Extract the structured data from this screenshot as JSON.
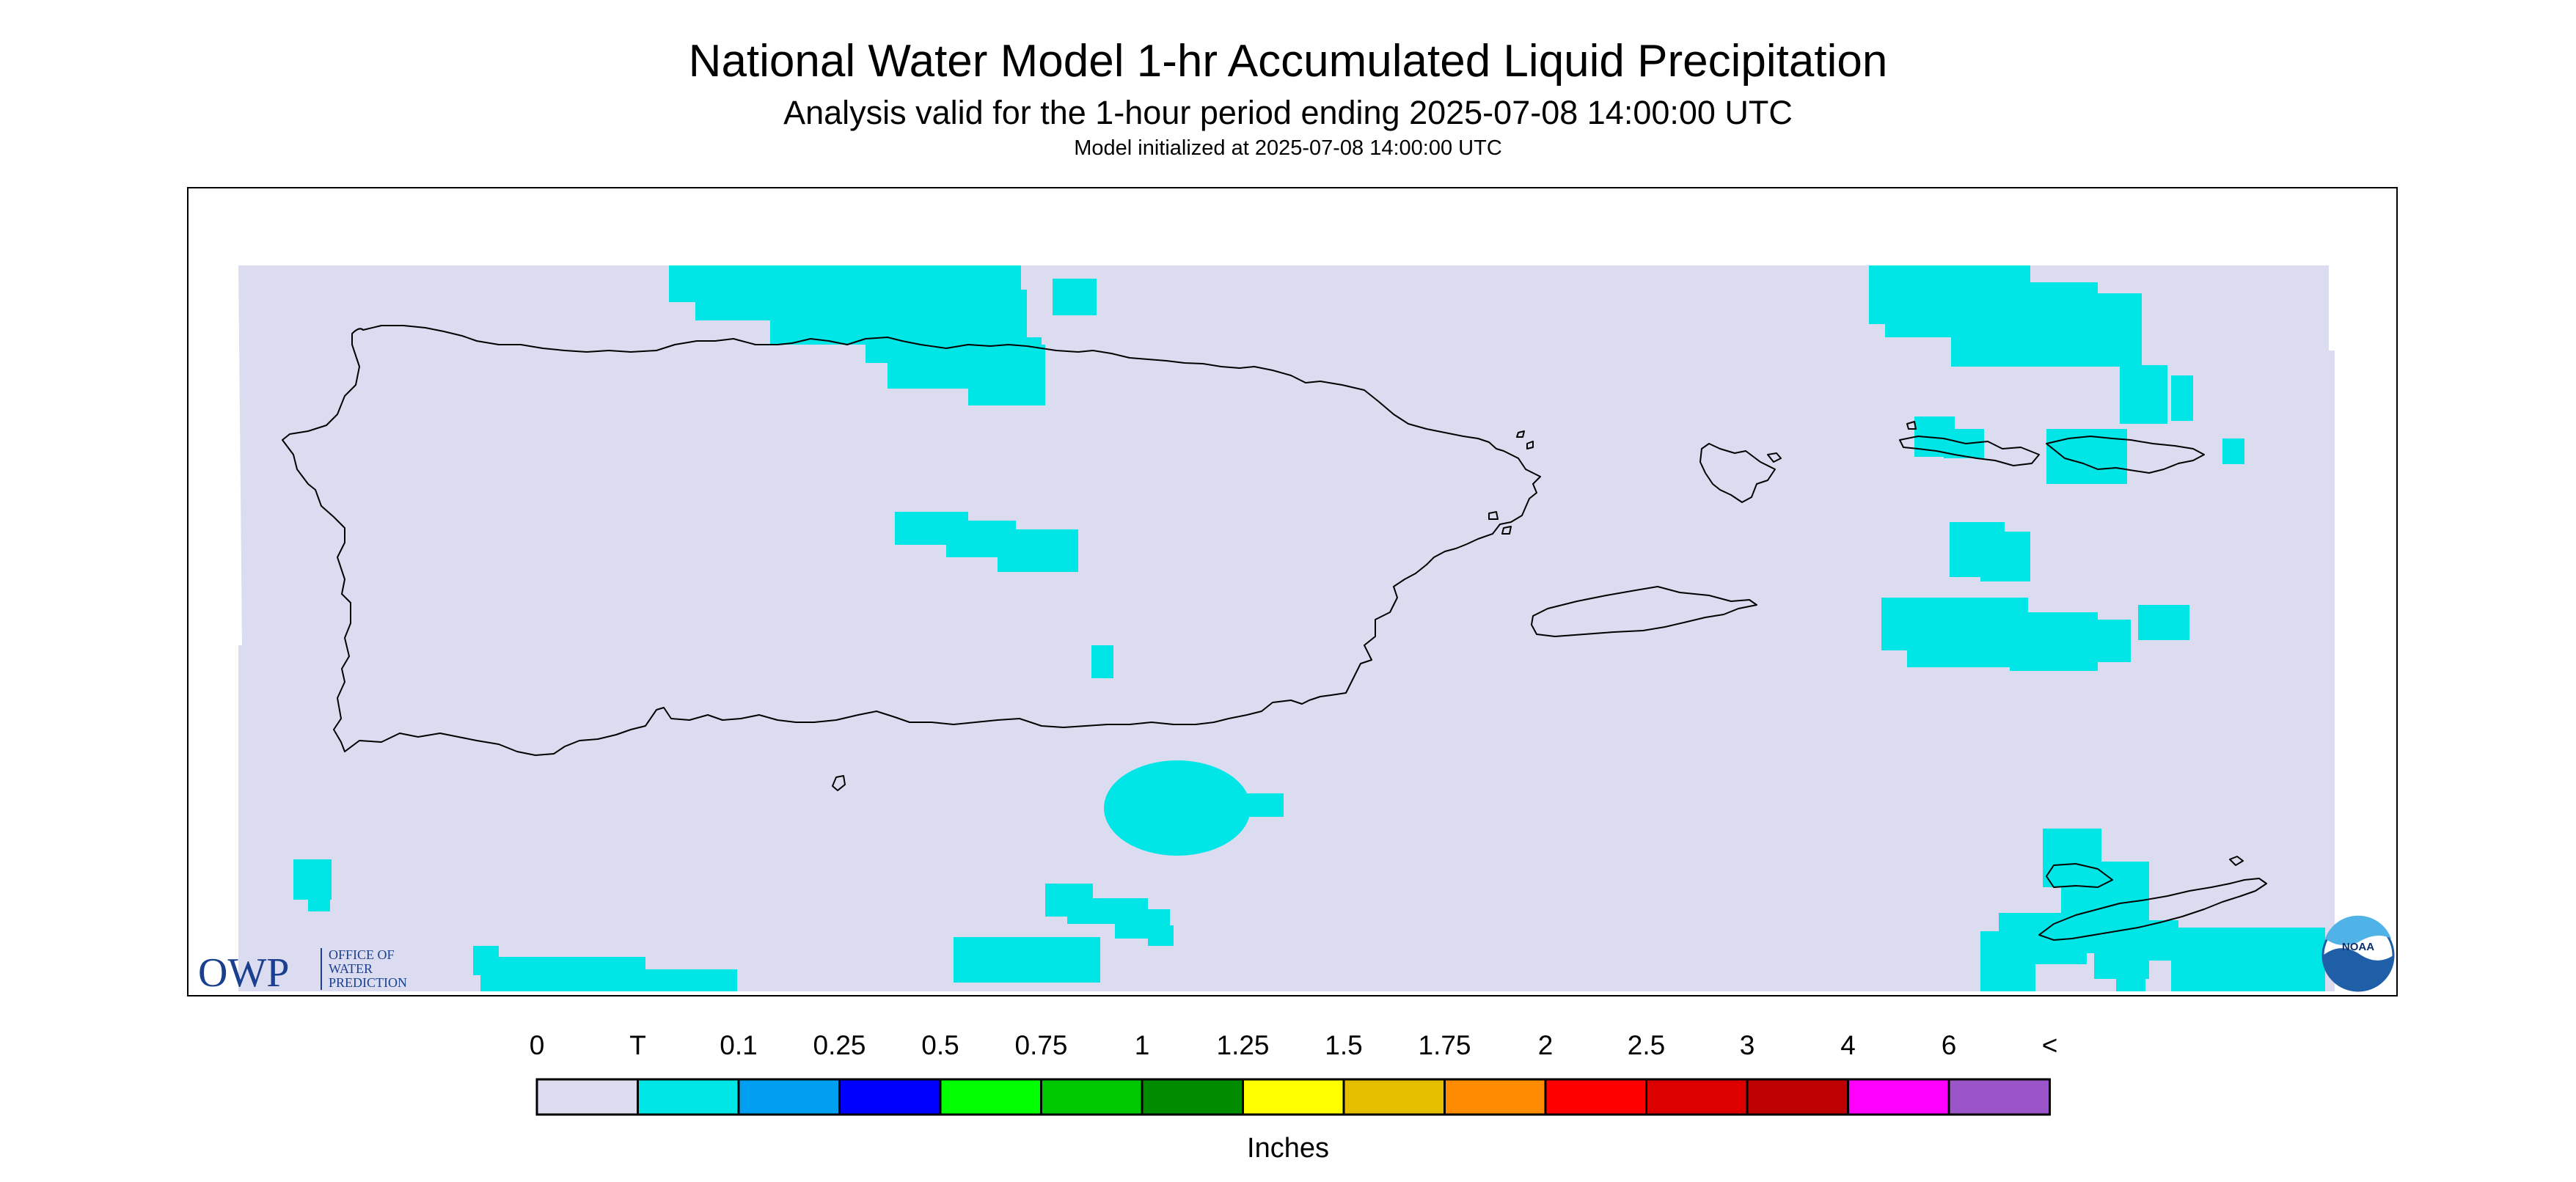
{
  "title": "National Water Model 1-hr Accumulated Liquid Precipitation",
  "subtitle": "Analysis valid for the 1-hour period ending 2025-07-08 14:00:00 UTC",
  "init_line": "Model initialized at 2025-07-08 14:00:00 UTC",
  "logo_left": {
    "letters": "OWP",
    "text_lines": [
      "OFFICE OF",
      "WATER",
      "PREDICTION"
    ],
    "color": "#1a3f8f"
  },
  "logo_right": {
    "text": "NOAA",
    "colors": [
      "#1f5fa8",
      "#4fb3e8"
    ]
  },
  "colors": {
    "background": "#dcdcf0",
    "light_precip": "#00e6e6",
    "outline": "#000000"
  },
  "legend": {
    "labels": [
      "0",
      "T",
      "0.1",
      "0.25",
      "0.5",
      "0.75",
      "1",
      "1.25",
      "1.5",
      "1.75",
      "2",
      "2.5",
      "3",
      "4",
      "6",
      "<"
    ],
    "colors": [
      "#dcdcf0",
      "#00e6e6",
      "#009ef0",
      "#0000ff",
      "#00ff00",
      "#00c800",
      "#008c00",
      "#ffff00",
      "#e6be00",
      "#ff8c00",
      "#ff0000",
      "#dc0000",
      "#be0000",
      "#ff00ff",
      "#9b55c8"
    ],
    "units": "Inches"
  }
}
